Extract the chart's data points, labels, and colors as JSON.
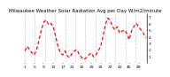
{
  "title": "Milwaukee Weather Solar Radiation Avg per Day W/m2/minute",
  "line_color": "#ff0000",
  "background_color": "#ffffff",
  "grid_color": "#888888",
  "ylim": [
    0.0,
    7.5
  ],
  "yticks": [
    1,
    2,
    3,
    4,
    5,
    6,
    7
  ],
  "values": [
    1.8,
    2.5,
    2.0,
    1.5,
    1.2,
    2.0,
    3.5,
    5.0,
    6.2,
    6.5,
    5.8,
    6.0,
    5.5,
    4.0,
    2.5,
    1.5,
    1.2,
    1.8,
    1.0,
    0.8,
    1.5,
    1.8,
    2.0,
    1.2,
    0.8,
    0.5,
    0.8,
    1.2,
    1.5,
    0.9,
    1.2,
    1.8,
    2.5,
    4.0,
    5.8,
    6.8,
    6.5,
    5.5,
    5.0,
    5.5,
    4.5,
    4.8,
    5.0,
    4.5,
    3.5,
    4.8,
    5.5,
    6.0,
    5.5,
    5.0,
    4.5,
    3.8
  ],
  "num_gridlines": 13,
  "title_fontsize": 4.0,
  "tick_fontsize": 3.2,
  "line_width": 0.9,
  "dash_seq": [
    3,
    2
  ]
}
